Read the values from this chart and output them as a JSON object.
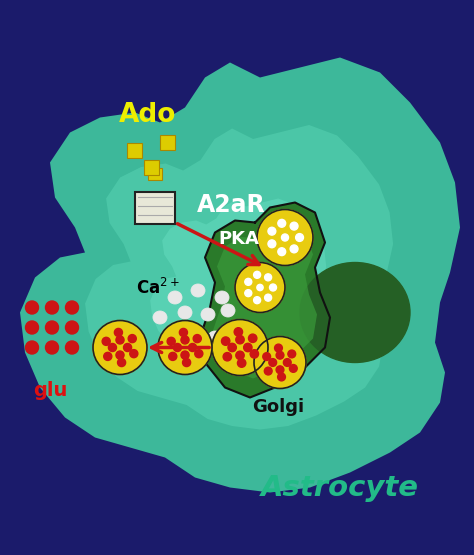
{
  "bg_color": "#1b1b6b",
  "astrocyte_outer_color": "#2a7a6a",
  "astrocyte_mid_color": "#3aaa8a",
  "astrocyte_light_color": "#55c8a8",
  "golgi_color": "#2a7a2a",
  "golgi_light_color": "#3aaa3a",
  "nucleus_color": "#256025",
  "title_text": "Astrocyte",
  "title_color": "#22bb88",
  "ado_text": "Ado",
  "ado_color": "#eeee00",
  "a2ar_text": "A2aR",
  "a2ar_color": "#ffffff",
  "pka_text": "PKA",
  "pka_color": "#ffffff",
  "ca_text": "Ca",
  "ca_color": "#000000",
  "glu_text": "glu",
  "glu_color": "#dd1111",
  "golgi_text": "Golgi",
  "golgi_text_color": "#111111",
  "yellow_sq_color": "#ddcc00",
  "receptor_fill": "#e8e8d8",
  "receptor_edge": "#222222",
  "vesicle_yellow": "#e8cc10",
  "vesicle_red_dot": "#cc1515",
  "ca_sphere_color": "#e8e8e8",
  "ca_sphere_edge": "#888888",
  "arrow_color": "#cc1515",
  "figsize": [
    4.74,
    5.55
  ],
  "dpi": 100
}
